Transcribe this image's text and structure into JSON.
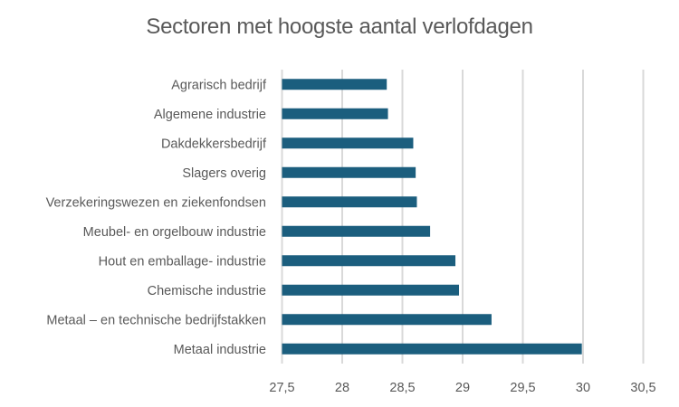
{
  "chart_data": {
    "type": "bar",
    "orientation": "horizontal",
    "title": "Sectoren met hoogste aantal verlofdagen",
    "xlabel": "",
    "ylabel": "",
    "xlim": [
      27.5,
      30.5
    ],
    "xticks": [
      27.5,
      28,
      28.5,
      29,
      29.5,
      30,
      30.5
    ],
    "xtick_labels": [
      "27,5",
      "28",
      "28,5",
      "29",
      "29,5",
      "30",
      "30,5"
    ],
    "grid": true,
    "legend": "none",
    "bar_color": "#1b5e7e",
    "categories": [
      "Agrarisch bedrijf",
      "Algemene industrie",
      "Dakdekkersbedrijf",
      "Slagers overig",
      "Verzekeringswezen en ziekenfondsen",
      "Meubel- en orgelbouw industrie",
      "Hout en emballage- industrie",
      "Chemische industrie",
      "Metaal – en technische bedrijfstakken",
      "Metaal industrie"
    ],
    "values": [
      28.37,
      28.38,
      28.59,
      28.61,
      28.62,
      28.73,
      28.94,
      28.97,
      29.24,
      29.99
    ]
  }
}
